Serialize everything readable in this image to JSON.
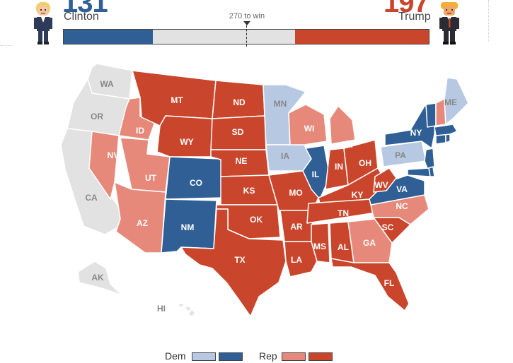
{
  "header": {
    "dem_name": "Clinton",
    "rep_name": "Trump",
    "dem_count": "131",
    "rep_count": "197",
    "threshold_label": "270 to win"
  },
  "ev_bar": {
    "total": 538,
    "dem_electoral_votes": 131,
    "rep_electoral_votes": 197,
    "threshold": 270
  },
  "colors": {
    "dem_strong": "#2f5f95",
    "dem_lean": "#b7c9e2",
    "rep_strong": "#c9462c",
    "rep_lean": "#e6897a",
    "undecided": "#e2e2e2"
  },
  "states": [
    {
      "abbr": "WA",
      "category": "undecided"
    },
    {
      "abbr": "OR",
      "category": "undecided"
    },
    {
      "abbr": "CA",
      "category": "undecided"
    },
    {
      "abbr": "NV",
      "category": "rep_lean"
    },
    {
      "abbr": "ID",
      "category": "rep_lean"
    },
    {
      "abbr": "UT",
      "category": "rep_lean"
    },
    {
      "abbr": "AZ",
      "category": "rep_lean"
    },
    {
      "abbr": "MT",
      "category": "rep_strong"
    },
    {
      "abbr": "WY",
      "category": "rep_strong"
    },
    {
      "abbr": "CO",
      "category": "dem_strong"
    },
    {
      "abbr": "NM",
      "category": "dem_strong"
    },
    {
      "abbr": "ND",
      "category": "rep_strong"
    },
    {
      "abbr": "SD",
      "category": "rep_strong"
    },
    {
      "abbr": "NE",
      "category": "rep_strong"
    },
    {
      "abbr": "KS",
      "category": "rep_strong"
    },
    {
      "abbr": "OK",
      "category": "rep_strong"
    },
    {
      "abbr": "TX",
      "category": "rep_strong"
    },
    {
      "abbr": "MN",
      "category": "dem_lean"
    },
    {
      "abbr": "IA",
      "category": "dem_lean"
    },
    {
      "abbr": "MO",
      "category": "rep_strong"
    },
    {
      "abbr": "AR",
      "category": "rep_strong"
    },
    {
      "abbr": "LA",
      "category": "rep_strong"
    },
    {
      "abbr": "WI",
      "category": "rep_lean"
    },
    {
      "abbr": "IL",
      "category": "dem_strong"
    },
    {
      "abbr": "MI",
      "category": "rep_lean"
    },
    {
      "abbr": "IN",
      "category": "rep_strong"
    },
    {
      "abbr": "OH",
      "category": "rep_strong"
    },
    {
      "abbr": "KY",
      "category": "rep_strong"
    },
    {
      "abbr": "TN",
      "category": "rep_strong"
    },
    {
      "abbr": "MS",
      "category": "rep_strong"
    },
    {
      "abbr": "AL",
      "category": "rep_strong"
    },
    {
      "abbr": "GA",
      "category": "rep_lean"
    },
    {
      "abbr": "FL",
      "category": "rep_strong"
    },
    {
      "abbr": "SC",
      "category": "rep_strong"
    },
    {
      "abbr": "NC",
      "category": "rep_lean"
    },
    {
      "abbr": "VA",
      "category": "dem_strong"
    },
    {
      "abbr": "WV",
      "category": "rep_strong"
    },
    {
      "abbr": "PA",
      "category": "dem_lean"
    },
    {
      "abbr": "NY",
      "category": "dem_strong"
    },
    {
      "abbr": "NJ",
      "category": "dem_strong"
    },
    {
      "abbr": "MD",
      "category": "dem_strong"
    },
    {
      "abbr": "DE",
      "category": "dem_strong"
    },
    {
      "abbr": "CT",
      "category": "dem_strong"
    },
    {
      "abbr": "RI",
      "category": "dem_strong"
    },
    {
      "abbr": "MA",
      "category": "dem_strong"
    },
    {
      "abbr": "VT",
      "category": "dem_strong"
    },
    {
      "abbr": "NH",
      "category": "rep_lean"
    },
    {
      "abbr": "ME",
      "category": "dem_lean"
    },
    {
      "abbr": "AK",
      "category": "undecided"
    },
    {
      "abbr": "HI",
      "category": "undecided"
    }
  ],
  "legend": {
    "dem_label": "Dem",
    "rep_label": "Rep"
  }
}
